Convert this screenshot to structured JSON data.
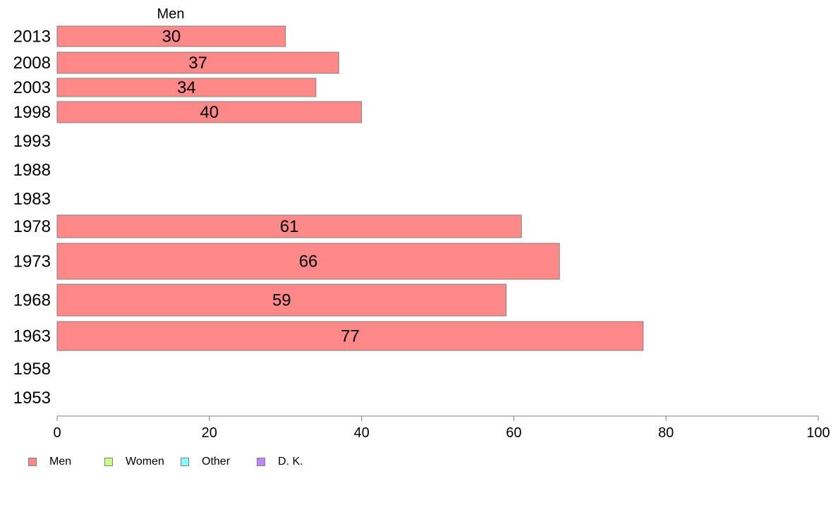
{
  "chart_data": {
    "type": "bar",
    "orientation": "horizontal",
    "title": "Men",
    "categories": [
      "2013",
      "2008",
      "2003",
      "1998",
      "1993",
      "1988",
      "1983",
      "1978",
      "1973",
      "1968",
      "1963",
      "1958",
      "1953"
    ],
    "series": [
      {
        "name": "Men",
        "color": "#ff8888",
        "values": [
          30,
          37,
          34,
          40,
          null,
          null,
          null,
          61,
          66,
          59,
          77,
          null,
          null
        ]
      }
    ],
    "data_labels": [
      "30",
      "37",
      "34",
      "40",
      "",
      "",
      "",
      "61",
      "66",
      "59",
      "77",
      "",
      ""
    ],
    "xlim": [
      0,
      100
    ],
    "xticks": [
      0,
      20,
      40,
      60,
      80,
      100
    ],
    "xlabel": "",
    "ylabel": "",
    "grid": false,
    "legend": {
      "placement": "bottom-left",
      "items": [
        {
          "label": "Men",
          "color": "#ff8888"
        },
        {
          "label": "Women",
          "color": "#ccff88"
        },
        {
          "label": "Other",
          "color": "#88ffff"
        },
        {
          "label": "D. K.",
          "color": "#bb88ff"
        }
      ]
    }
  }
}
